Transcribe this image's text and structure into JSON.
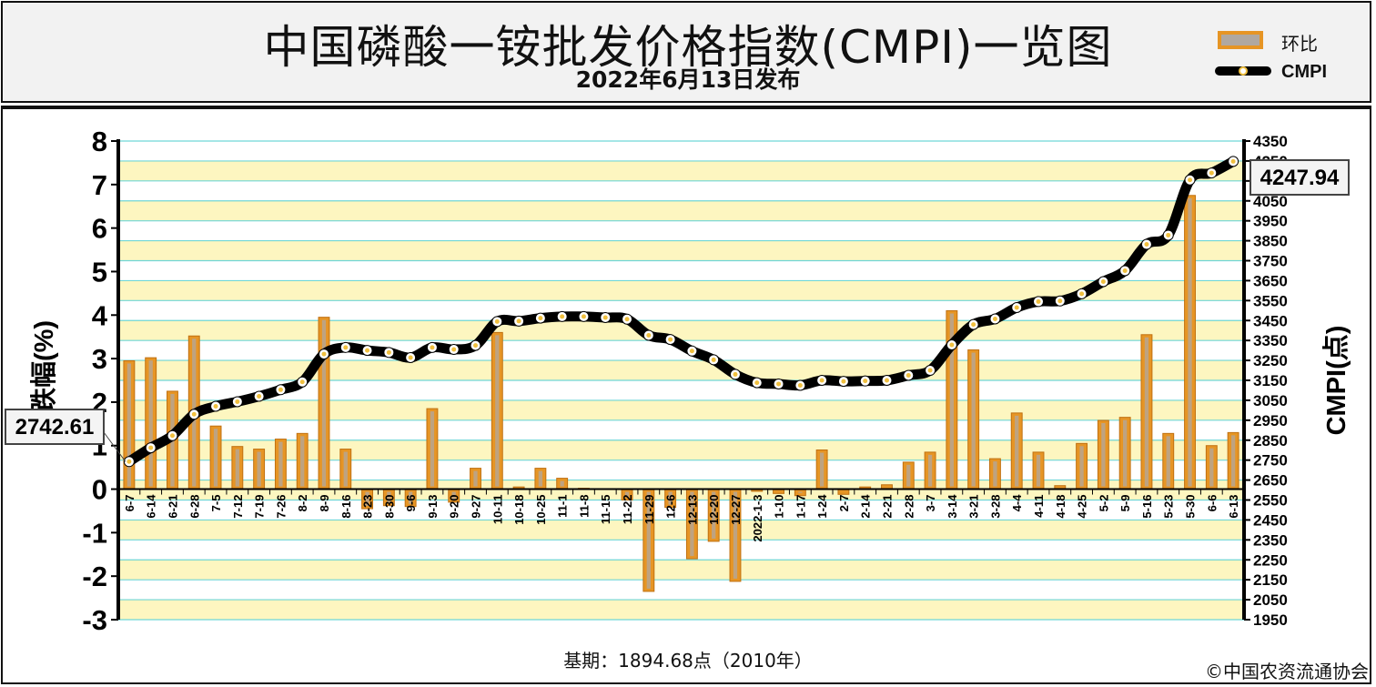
{
  "header": {
    "title": "中国磷酸一铵批发价格指数(CMPI)一览图",
    "subtitle": "2022年6月13日发布"
  },
  "legend": [
    {
      "name": "环比",
      "type": "bar"
    },
    {
      "name": "CMPI",
      "type": "line"
    }
  ],
  "footer": {
    "base_period": "基期：1894.68点（2010年）",
    "copyright": "©中国农资流通协会"
  },
  "callouts": {
    "start_value": "2742.61",
    "end_value": "4247.94"
  },
  "colors": {
    "bar_fill": "#e69525",
    "bar_edge": "#c07010",
    "bar_inner": "#b0a8a0",
    "line": "#000000",
    "marker_fill": "#ffffff",
    "marker_dot": "#f0c040",
    "band_yellow": "#fdf6c0",
    "band_white": "#ffffff",
    "grid": "#6fd6d6"
  },
  "chart_data": {
    "type": "bar+line",
    "categories": [
      "6-7",
      "6-14",
      "6-21",
      "6-28",
      "7-5",
      "7-12",
      "7-19",
      "7-26",
      "8-2",
      "8-9",
      "8-16",
      "8-23",
      "8-30",
      "9-6",
      "9-13",
      "9-20",
      "9-27",
      "10-11",
      "10-18",
      "10-25",
      "11-1",
      "11-8",
      "11-15",
      "11-22",
      "11-29",
      "12-6",
      "12-13",
      "12-20",
      "12-27",
      "2022-1-3",
      "1-10",
      "1-17",
      "1-24",
      "2-7",
      "2-14",
      "2-21",
      "2-28",
      "3-7",
      "3-14",
      "3-21",
      "3-28",
      "4-4",
      "4-11",
      "4-18",
      "4-25",
      "5-2",
      "5-9",
      "5-16",
      "5-23",
      "5-30",
      "6-6",
      "6-13"
    ],
    "series": [
      {
        "name": "环比",
        "axis": "left",
        "values": [
          2.95,
          3.02,
          2.25,
          3.52,
          1.45,
          0.98,
          0.92,
          1.15,
          1.28,
          3.95,
          0.92,
          -0.45,
          -0.38,
          -0.4,
          1.85,
          -0.3,
          0.48,
          3.6,
          0.05,
          0.48,
          0.25,
          0.02,
          0.01,
          -0.25,
          -2.35,
          -0.42,
          -1.6,
          -1.2,
          -2.12,
          -0.05,
          -0.1,
          -0.15,
          0.9,
          -0.12,
          0.05,
          0.1,
          0.62,
          0.85,
          4.1,
          3.2,
          0.7,
          1.75,
          0.85,
          0.08,
          1.05,
          1.58,
          1.65,
          3.55,
          1.28,
          6.75,
          1.0,
          1.3
        ]
      },
      {
        "name": "CMPI",
        "axis": "right",
        "values": [
          2742.61,
          2812,
          2873,
          2980,
          3020,
          3043,
          3070,
          3103,
          3142,
          3282,
          3315,
          3300,
          3290,
          3264,
          3315,
          3305,
          3325,
          3445,
          3447,
          3462,
          3470,
          3470,
          3465,
          3457,
          3376,
          3355,
          3297,
          3253,
          3180,
          3138,
          3132,
          3125,
          3150,
          3145,
          3147,
          3150,
          3175,
          3200,
          3328,
          3430,
          3458,
          3515,
          3545,
          3548,
          3584,
          3645,
          3700,
          3832,
          3878,
          4155,
          4190,
          4247.94
        ]
      }
    ],
    "y_left": {
      "label": "涨跌幅(%)",
      "min": -3,
      "max": 8,
      "ticks": [
        -3,
        -2,
        -1,
        0,
        1,
        2,
        3,
        4,
        5,
        6,
        7,
        8
      ]
    },
    "y_right": {
      "label": "CMPI(点)",
      "min": 1950,
      "max": 4350,
      "ticks": [
        1950,
        2050,
        2150,
        2250,
        2350,
        2450,
        2550,
        2650,
        2750,
        2850,
        2950,
        3050,
        3150,
        3250,
        3350,
        3450,
        3550,
        3650,
        3750,
        3850,
        3950,
        4050,
        4150,
        4250,
        4350
      ]
    }
  }
}
